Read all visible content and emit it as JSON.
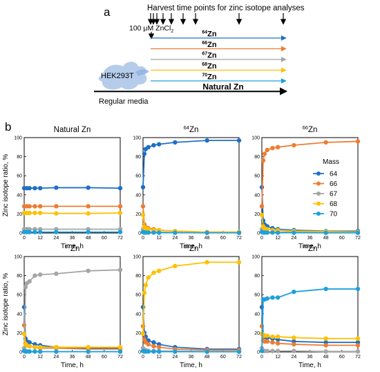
{
  "panel_a": {
    "label": "a",
    "harvest_label": "Harvest time points for zinc isotope analyses",
    "treatment_label": "100 µM ZnCl",
    "treatment_subscript": "2",
    "cell_label": "HEK293T",
    "baseline_label": "Regular media",
    "arrows": [
      {
        "mass": "64",
        "element": "Zn",
        "color": "#1f6fc6"
      },
      {
        "mass": "66",
        "element": "Zn",
        "color": "#ed7d31"
      },
      {
        "mass": "67",
        "element": "Zn",
        "color": "#a5a5a5"
      },
      {
        "mass": "68",
        "element": "Zn",
        "color": "#ffc000"
      },
      {
        "mass": "70",
        "element": "Zn",
        "color": "#1ea0dc"
      },
      {
        "mass": "",
        "element": "Natural Zn",
        "color": "#000000"
      }
    ]
  },
  "panel_b": {
    "label": "b",
    "ylabel": "Zinc isotope ratio, %",
    "xlabel": "Time, h",
    "legend_title": "Mass"
  },
  "chart_data": [
    {
      "type": "line",
      "title": "Natural Zn",
      "title_mass": "",
      "xlabel": "Time, h",
      "ylabel": "Zinc isotope ratio, %",
      "x": [
        0,
        2,
        4,
        8,
        12,
        24,
        48,
        72
      ],
      "xticks": [
        0,
        12,
        24,
        36,
        48,
        60,
        72
      ],
      "xlim": [
        0,
        72
      ],
      "yticks": [
        0,
        20,
        40,
        60,
        80,
        100
      ],
      "ylim": [
        0,
        100
      ],
      "series": [
        {
          "name": "64",
          "color": "#1f6fc6",
          "values": [
            47,
            47,
            47,
            47,
            47,
            47.5,
            47.5,
            47
          ]
        },
        {
          "name": "66",
          "color": "#ed7d31",
          "values": [
            28,
            28,
            28,
            28,
            28,
            28,
            28,
            28
          ]
        },
        {
          "name": "67",
          "color": "#a5a5a5",
          "values": [
            4,
            4,
            4,
            4,
            4,
            4,
            4,
            4
          ]
        },
        {
          "name": "68",
          "color": "#ffc000",
          "values": [
            21,
            21,
            21,
            21,
            21,
            20.5,
            20.5,
            21
          ]
        },
        {
          "name": "70",
          "color": "#1ea0dc",
          "values": [
            1,
            1,
            1,
            1,
            1,
            1,
            1,
            1
          ]
        }
      ]
    },
    {
      "type": "line",
      "title": "Zn",
      "title_mass": "64",
      "xlabel": "Time, h",
      "ylabel": "",
      "x": [
        0,
        1,
        2,
        4,
        8,
        12,
        24,
        48,
        72
      ],
      "xticks": [
        0,
        12,
        24,
        36,
        48,
        60,
        72
      ],
      "xlim": [
        0,
        72
      ],
      "yticks": [
        0,
        20,
        40,
        60,
        80,
        100
      ],
      "ylim": [
        0,
        100
      ],
      "series": [
        {
          "name": "64",
          "color": "#1f6fc6",
          "values": [
            48,
            83,
            88,
            90,
            92,
            93,
            95,
            97,
            97
          ]
        },
        {
          "name": "66",
          "color": "#ed7d31",
          "values": [
            28,
            9,
            6,
            5,
            4,
            3,
            2,
            1,
            1
          ]
        },
        {
          "name": "67",
          "color": "#a5a5a5",
          "values": [
            4,
            2,
            1,
            1,
            1,
            1,
            0.5,
            0.3,
            0.3
          ]
        },
        {
          "name": "68",
          "color": "#ffc000",
          "values": [
            19,
            6,
            5,
            4,
            3,
            3,
            2,
            1,
            1
          ]
        },
        {
          "name": "70",
          "color": "#1ea0dc",
          "values": [
            1,
            0.5,
            0.5,
            0.5,
            0.5,
            0.3,
            0.3,
            0.2,
            0.2
          ]
        }
      ]
    },
    {
      "type": "line",
      "title": "Zn",
      "title_mass": "66",
      "xlabel": "Time, h",
      "ylabel": "",
      "x": [
        0,
        1,
        2,
        4,
        8,
        12,
        24,
        48,
        72
      ],
      "xticks": [
        0,
        12,
        24,
        36,
        48,
        60,
        72
      ],
      "xlim": [
        0,
        72
      ],
      "yticks": [
        0,
        20,
        40,
        60,
        80,
        100
      ],
      "ylim": [
        0,
        100
      ],
      "legend": {
        "title": "Mass",
        "position": "right"
      },
      "series": [
        {
          "name": "64",
          "color": "#1f6fc6",
          "values": [
            48,
            13,
            9,
            7,
            5,
            4,
            3,
            2,
            2
          ]
        },
        {
          "name": "66",
          "color": "#ed7d31",
          "values": [
            28,
            76,
            83,
            87,
            89,
            90,
            92,
            95,
            96
          ]
        },
        {
          "name": "67",
          "color": "#a5a5a5",
          "values": [
            4,
            2,
            1,
            1,
            1,
            1,
            1,
            0.5,
            0.5
          ]
        },
        {
          "name": "68",
          "color": "#ffc000",
          "values": [
            19,
            7,
            5,
            4,
            3,
            3,
            2,
            1.5,
            1
          ]
        },
        {
          "name": "70",
          "color": "#1ea0dc",
          "values": [
            1,
            0.5,
            0.5,
            0.5,
            0.5,
            0.3,
            0.3,
            0.2,
            0.2
          ]
        }
      ]
    },
    {
      "type": "line",
      "title": "Zn",
      "title_mass": "67",
      "xlabel": "Time, h",
      "ylabel": "Zinc isotope ratio, %",
      "x": [
        0,
        1,
        2,
        4,
        8,
        12,
        24,
        48,
        72
      ],
      "xticks": [
        0,
        12,
        24,
        36,
        48,
        60,
        72
      ],
      "xlim": [
        0,
        72
      ],
      "yticks": [
        0,
        20,
        40,
        60,
        80,
        100
      ],
      "ylim": [
        0,
        100
      ],
      "series": [
        {
          "name": "64",
          "color": "#1f6fc6",
          "values": [
            47,
            14,
            11,
            10,
            8,
            7,
            5,
            4,
            4
          ]
        },
        {
          "name": "66",
          "color": "#ed7d31",
          "values": [
            28,
            9,
            7,
            6,
            5,
            4,
            4,
            3,
            3
          ]
        },
        {
          "name": "67",
          "color": "#a5a5a5",
          "values": [
            4,
            68,
            72,
            74,
            80,
            81,
            82,
            85,
            86
          ]
        },
        {
          "name": "68",
          "color": "#ffc000",
          "values": [
            19,
            8,
            7,
            6,
            5,
            5,
            5,
            5,
            5
          ]
        },
        {
          "name": "70",
          "color": "#1ea0dc",
          "values": [
            1,
            0.5,
            0.5,
            0.5,
            0.5,
            0.3,
            0.3,
            0.3,
            0.3
          ]
        }
      ]
    },
    {
      "type": "line",
      "title": "Zn",
      "title_mass": "68",
      "xlabel": "Time, h",
      "ylabel": "",
      "x": [
        0,
        1,
        2,
        4,
        8,
        12,
        24,
        48,
        72
      ],
      "xticks": [
        0,
        12,
        24,
        36,
        48,
        60,
        72
      ],
      "xlim": [
        0,
        72
      ],
      "yticks": [
        0,
        20,
        40,
        60,
        80,
        100
      ],
      "ylim": [
        0,
        100
      ],
      "series": [
        {
          "name": "64",
          "color": "#1f6fc6",
          "values": [
            47,
            20,
            16,
            12,
            10,
            8,
            5,
            3,
            3
          ]
        },
        {
          "name": "66",
          "color": "#ed7d31",
          "values": [
            27,
            13,
            10,
            8,
            6,
            5,
            3,
            2,
            2
          ]
        },
        {
          "name": "67",
          "color": "#a5a5a5",
          "values": [
            4,
            2,
            2,
            1,
            1,
            1,
            1,
            0.5,
            0.5
          ]
        },
        {
          "name": "68",
          "color": "#ffc000",
          "values": [
            19,
            62,
            70,
            78,
            83,
            85,
            90,
            94,
            94
          ]
        },
        {
          "name": "70",
          "color": "#1ea0dc",
          "values": [
            1,
            0.5,
            0.5,
            0.5,
            0.5,
            0.3,
            0.3,
            0.2,
            0.2
          ]
        }
      ]
    },
    {
      "type": "line",
      "title": "Zn",
      "title_mass": "70",
      "xlabel": "Time, h",
      "ylabel": "",
      "x": [
        0,
        1,
        2,
        4,
        8,
        12,
        24,
        48,
        72
      ],
      "xticks": [
        0,
        12,
        24,
        36,
        48,
        60,
        72
      ],
      "xlim": [
        0,
        72
      ],
      "yticks": [
        0,
        20,
        40,
        60,
        80,
        100
      ],
      "ylim": [
        0,
        100
      ],
      "series": [
        {
          "name": "64",
          "color": "#1f6fc6",
          "values": [
            47,
            18,
            16,
            15,
            14,
            13,
            11,
            10,
            10
          ]
        },
        {
          "name": "66",
          "color": "#ed7d31",
          "values": [
            27,
            12,
            11,
            11,
            10,
            9,
            8,
            7,
            7
          ]
        },
        {
          "name": "67",
          "color": "#a5a5a5",
          "values": [
            4,
            1,
            1,
            1,
            1,
            1,
            1,
            0.5,
            0.5
          ]
        },
        {
          "name": "68",
          "color": "#ffc000",
          "values": [
            19,
            18,
            17,
            17,
            16,
            16,
            15,
            14,
            14
          ]
        },
        {
          "name": "70",
          "color": "#1ea0dc",
          "values": [
            1,
            55,
            55,
            56,
            57,
            57,
            63,
            66,
            66
          ]
        }
      ]
    }
  ]
}
